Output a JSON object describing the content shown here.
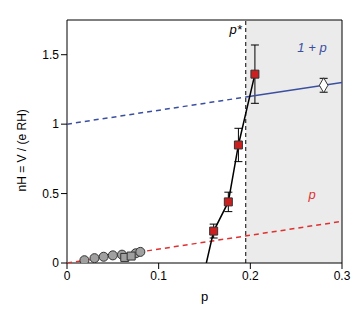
{
  "chart_data": {
    "type": "scatter",
    "x_label": "p",
    "y_label": "nH = V / (e RH)",
    "xlim": [
      0,
      0.3
    ],
    "xticks": [
      0,
      0.1,
      0.2,
      0.3
    ],
    "ylim": [
      0,
      1.75
    ],
    "yticks": [
      0,
      0.5,
      1,
      1.5
    ],
    "shaded_region": [
      0.195,
      0.3
    ],
    "vertical_line": {
      "value": 0.195,
      "label": "p*",
      "line_style": "dashed"
    },
    "series": [
      {
        "type": "line",
        "color": "#e03030",
        "line_style": "dashed",
        "marker": "none",
        "x": [
          0,
          0.3
        ],
        "values": [
          0,
          0.3
        ],
        "label": "p"
      },
      {
        "type": "line",
        "color": "#3b4fa0",
        "line_style": "dashed",
        "marker": "none",
        "x": [
          0,
          0.195
        ],
        "values": [
          1,
          1.195
        ]
      },
      {
        "type": "line",
        "color": "#3b4fa0",
        "line_style": "solid",
        "marker": "none",
        "x": [
          0.195,
          0.3
        ],
        "values": [
          1.195,
          1.3
        ],
        "label": "1 + p"
      },
      {
        "type": "line",
        "color": "#000000",
        "line_style": "solid",
        "marker": "none",
        "x": [
          0.152,
          0.16,
          0.176,
          0.187,
          0.205
        ],
        "values": [
          0,
          0.23,
          0.44,
          0.85,
          1.36
        ]
      },
      {
        "type": "scatter",
        "color": "#a0a0a0",
        "marker": "circle",
        "x": [
          0.019,
          0.03,
          0.04,
          0.05,
          0.06,
          0.075,
          0.08
        ],
        "values": [
          0.02,
          0.035,
          0.045,
          0.055,
          0.06,
          0.07,
          0.08
        ]
      },
      {
        "type": "scatter",
        "color": "#a0a0a0",
        "marker": "square",
        "x": [
          0.063,
          0.07
        ],
        "values": [
          0.04,
          0.05
        ]
      },
      {
        "type": "scatter",
        "color": "#cc2020",
        "marker": "square",
        "x": [
          0.16,
          0.176,
          0.187,
          0.205
        ],
        "values": [
          0.23,
          0.44,
          0.85,
          1.36
        ],
        "errors": [
          0.05,
          0.07,
          0.12,
          0.21
        ]
      },
      {
        "type": "scatter",
        "color": "#ffffff",
        "marker": "diamond",
        "x": [
          0.28
        ],
        "values": [
          1.28
        ],
        "errors": [
          0.05
        ]
      }
    ]
  }
}
